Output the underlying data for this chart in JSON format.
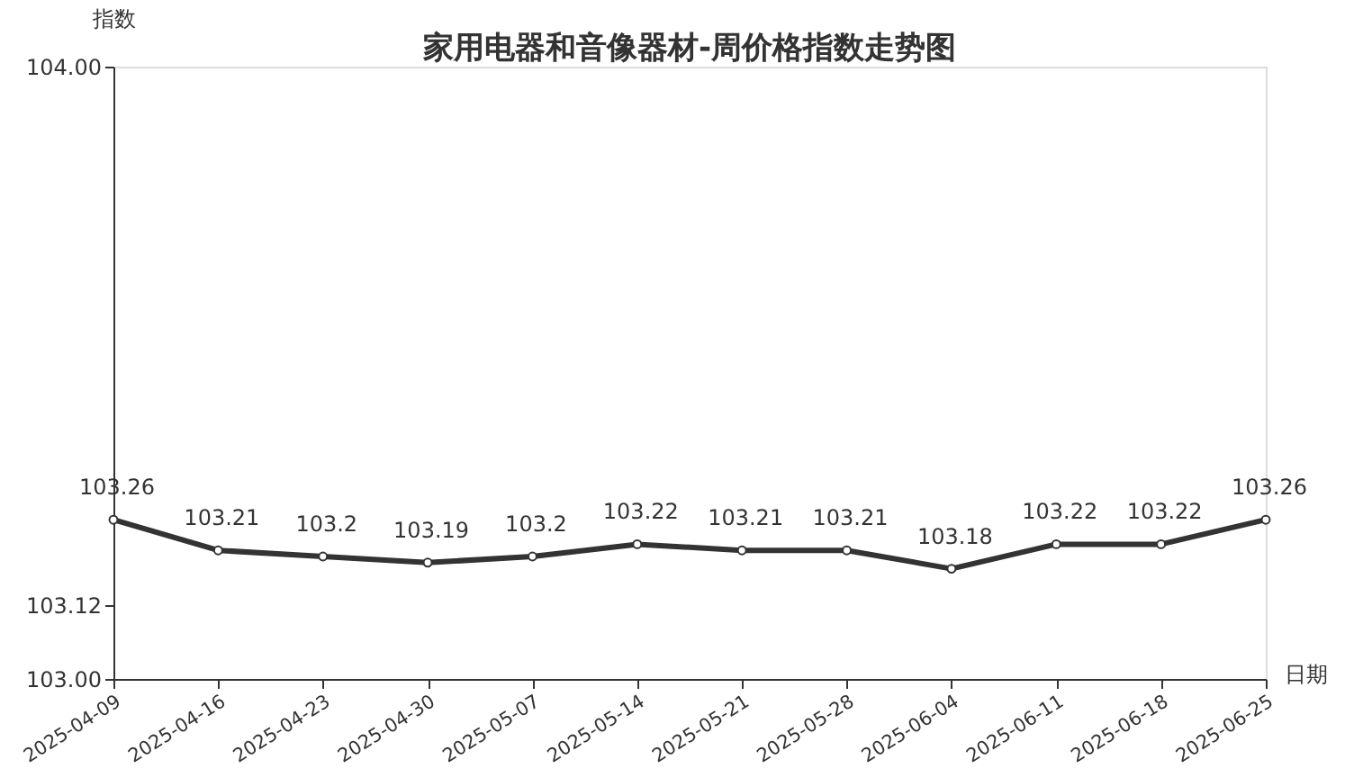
{
  "chart_data": {
    "type": "line",
    "title": "家用电器和音像器材-周价格指数走势图",
    "xlabel": "日期",
    "ylabel": "指数",
    "categories": [
      "2025-04-09",
      "2025-04-16",
      "2025-04-23",
      "2025-04-30",
      "2025-05-07",
      "2025-05-14",
      "2025-05-21",
      "2025-05-28",
      "2025-06-04",
      "2025-06-11",
      "2025-06-18",
      "2025-06-25"
    ],
    "series": [
      {
        "color": "#333333",
        "values": [
          103.26,
          103.21,
          103.2,
          103.19,
          103.2,
          103.22,
          103.21,
          103.21,
          103.18,
          103.22,
          103.22,
          103.26
        ]
      }
    ],
    "ylim": [
      103,
      104
    ],
    "yticks": [
      {
        "value": 103,
        "label": "103.00"
      },
      {
        "value": 103.12,
        "label": "103.12"
      },
      {
        "value": 104,
        "label": "104.00"
      }
    ],
    "data_labels": true,
    "marker": "circle",
    "line_style": "solid",
    "grid": false
  }
}
